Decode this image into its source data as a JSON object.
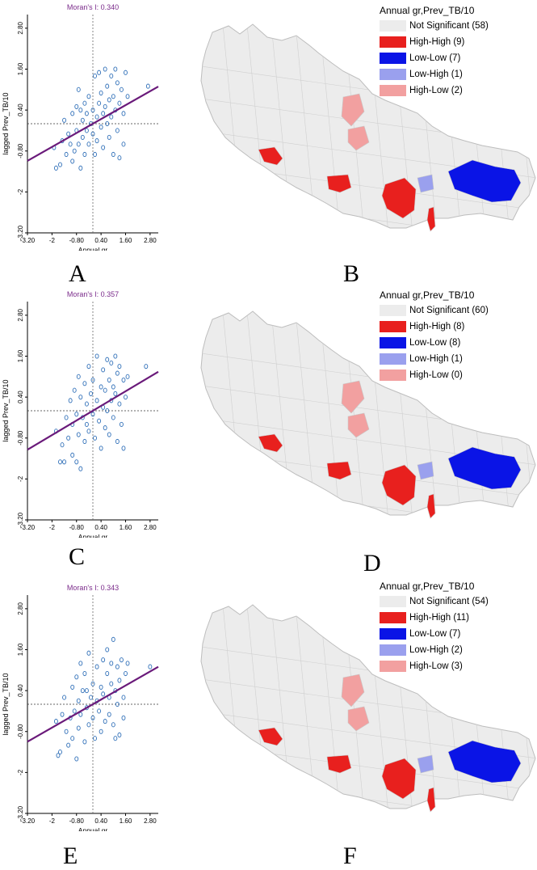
{
  "figure": {
    "panels": [
      {
        "label": "A",
        "kind": "scatter",
        "moran": "Moran's I: 0.340"
      },
      {
        "label": "B",
        "kind": "map",
        "legend_title": "Annual  gr,Prev_TB/10",
        "legend": [
          {
            "label": "Not Significant (58)",
            "color": "#ececec"
          },
          {
            "label": "High-High (9)",
            "color": "#e8201e"
          },
          {
            "label": "Low-Low (7)",
            "color": "#0a14e6"
          },
          {
            "label": "Low-High (1)",
            "color": "#9aa0ee"
          },
          {
            "label": "High-Low (2)",
            "color": "#f2a0a0"
          }
        ]
      },
      {
        "label": "C",
        "kind": "scatter",
        "moran": "Moran's I: 0.357"
      },
      {
        "label": "D",
        "kind": "map",
        "legend_title": "Annual  gr,Prev_TB/10",
        "legend": [
          {
            "label": "Not Significant (60)",
            "color": "#ececec"
          },
          {
            "label": "High-High (8)",
            "color": "#e8201e"
          },
          {
            "label": "Low-Low (8)",
            "color": "#0a14e6"
          },
          {
            "label": "Low-High (1)",
            "color": "#9aa0ee"
          },
          {
            "label": "High-Low (0)",
            "color": "#f2a0a0"
          }
        ]
      },
      {
        "label": "E",
        "kind": "scatter",
        "moran": "Moran's I: 0.343"
      },
      {
        "label": "F",
        "kind": "map",
        "legend_title": "Annual  gr,Prev_TB/10",
        "legend": [
          {
            "label": "Not Significant (54)",
            "color": "#ececec"
          },
          {
            "label": "High-High (11)",
            "color": "#e8201e"
          },
          {
            "label": "Low-Low (7)",
            "color": "#0a14e6"
          },
          {
            "label": "Low-High (2)",
            "color": "#9aa0ee"
          },
          {
            "label": "High-Low (3)",
            "color": "#f2a0a0"
          }
        ]
      }
    ]
  },
  "chart_data": [
    {
      "type": "scatter",
      "title": "Moran's I: 0.340",
      "xlabel": "Annual  gr",
      "ylabel": "lagged Prev_TB/10",
      "xticks": [
        "-3.20",
        "-2",
        "-0.80",
        "0.40",
        "1.60",
        "2.80"
      ],
      "yticks": [
        "-3.20",
        "-2",
        "-0.80",
        "0.40",
        "1.60",
        "2.80"
      ],
      "xlim": [
        -3.2,
        3.2
      ],
      "ylim": [
        -3.2,
        3.2
      ],
      "slope": 0.34,
      "points": [
        [
          -1.9,
          -0.7
        ],
        [
          -1.8,
          -1.3
        ],
        [
          -1.6,
          -1.2
        ],
        [
          -1.5,
          -0.5
        ],
        [
          -1.4,
          0.1
        ],
        [
          -1.3,
          -0.9
        ],
        [
          -1.2,
          -0.3
        ],
        [
          -1.1,
          -0.6
        ],
        [
          -1.0,
          0.3
        ],
        [
          -1.0,
          -1.1
        ],
        [
          -0.9,
          -0.8
        ],
        [
          -0.8,
          0.5
        ],
        [
          -0.8,
          -0.2
        ],
        [
          -0.7,
          1.0
        ],
        [
          -0.7,
          -0.6
        ],
        [
          -0.6,
          0.4
        ],
        [
          -0.6,
          -1.3
        ],
        [
          -0.5,
          0.1
        ],
        [
          -0.5,
          -0.4
        ],
        [
          -0.4,
          0.6
        ],
        [
          -0.4,
          -0.9
        ],
        [
          -0.3,
          0.3
        ],
        [
          -0.3,
          -0.2
        ],
        [
          -0.2,
          0.8
        ],
        [
          -0.2,
          -0.6
        ],
        [
          -0.1,
          0.0
        ],
        [
          0.0,
          0.4
        ],
        [
          0.0,
          -0.3
        ],
        [
          0.1,
          1.4
        ],
        [
          0.1,
          -0.9
        ],
        [
          0.2,
          0.2
        ],
        [
          0.2,
          -0.5
        ],
        [
          0.3,
          0.6
        ],
        [
          0.3,
          1.5
        ],
        [
          0.4,
          -0.1
        ],
        [
          0.4,
          0.9
        ],
        [
          0.5,
          0.3
        ],
        [
          0.5,
          -0.7
        ],
        [
          0.6,
          1.6
        ],
        [
          0.6,
          0.5
        ],
        [
          0.7,
          0.0
        ],
        [
          0.7,
          1.1
        ],
        [
          0.8,
          -0.4
        ],
        [
          0.8,
          0.7
        ],
        [
          0.9,
          1.4
        ],
        [
          0.9,
          0.2
        ],
        [
          1.0,
          -0.9
        ],
        [
          1.0,
          0.8
        ],
        [
          1.1,
          1.6
        ],
        [
          1.1,
          0.4
        ],
        [
          1.2,
          -0.2
        ],
        [
          1.2,
          1.2
        ],
        [
          1.3,
          0.6
        ],
        [
          1.3,
          -1.0
        ],
        [
          1.4,
          1.0
        ],
        [
          1.5,
          0.3
        ],
        [
          1.5,
          -0.6
        ],
        [
          1.6,
          1.5
        ],
        [
          1.7,
          0.8
        ],
        [
          2.7,
          1.1
        ]
      ]
    },
    {
      "type": "scatter",
      "title": "Moran's I: 0.357",
      "xlabel": "Annual  gr",
      "ylabel": "lagged Prev_TB/10",
      "xticks": [
        "-3.20",
        "-2",
        "-0.80",
        "0.40",
        "1.60",
        "2.80"
      ],
      "yticks": [
        "-3.20",
        "-2",
        "-0.80",
        "0.40",
        "1.60",
        "2.80"
      ],
      "xlim": [
        -3.2,
        3.2
      ],
      "ylim": [
        -3.2,
        3.2
      ],
      "slope": 0.357,
      "points": [
        [
          -1.8,
          -0.6
        ],
        [
          -1.6,
          -1.5
        ],
        [
          -1.5,
          -1.0
        ],
        [
          -1.4,
          -1.5
        ],
        [
          -1.3,
          -0.2
        ],
        [
          -1.2,
          -0.8
        ],
        [
          -1.1,
          0.3
        ],
        [
          -1.0,
          -0.4
        ],
        [
          -1.0,
          -1.3
        ],
        [
          -0.9,
          0.6
        ],
        [
          -0.8,
          -0.1
        ],
        [
          -0.8,
          -1.5
        ],
        [
          -0.7,
          1.0
        ],
        [
          -0.7,
          -0.7
        ],
        [
          -0.6,
          0.4
        ],
        [
          -0.6,
          -1.7
        ],
        [
          -0.5,
          -0.2
        ],
        [
          -0.4,
          0.8
        ],
        [
          -0.4,
          -0.9
        ],
        [
          -0.3,
          0.2
        ],
        [
          -0.3,
          -0.4
        ],
        [
          -0.2,
          1.3
        ],
        [
          -0.2,
          -0.6
        ],
        [
          -0.1,
          0.5
        ],
        [
          0.0,
          -0.1
        ],
        [
          0.0,
          0.9
        ],
        [
          0.1,
          -0.8
        ],
        [
          0.2,
          0.3
        ],
        [
          0.2,
          1.6
        ],
        [
          0.3,
          -0.3
        ],
        [
          0.4,
          0.7
        ],
        [
          0.4,
          -1.1
        ],
        [
          0.5,
          1.2
        ],
        [
          0.5,
          0.1
        ],
        [
          0.6,
          0.6
        ],
        [
          0.6,
          -0.5
        ],
        [
          0.7,
          1.5
        ],
        [
          0.7,
          0.0
        ],
        [
          0.8,
          0.9
        ],
        [
          0.8,
          -0.7
        ],
        [
          0.9,
          1.4
        ],
        [
          0.9,
          0.3
        ],
        [
          1.0,
          0.7
        ],
        [
          1.0,
          -0.2
        ],
        [
          1.1,
          1.6
        ],
        [
          1.1,
          0.5
        ],
        [
          1.2,
          -0.9
        ],
        [
          1.2,
          1.1
        ],
        [
          1.3,
          0.2
        ],
        [
          1.3,
          1.3
        ],
        [
          1.4,
          -0.4
        ],
        [
          1.5,
          0.9
        ],
        [
          1.5,
          -1.1
        ],
        [
          1.6,
          0.4
        ],
        [
          1.7,
          1.0
        ],
        [
          2.6,
          1.3
        ]
      ]
    },
    {
      "type": "scatter",
      "title": "Moran's I: 0.343",
      "xlabel": "Annual  gr",
      "ylabel": "lagged Prev_TB/10",
      "xticks": [
        "-3.20",
        "-2",
        "-0.80",
        "0.40",
        "1.60",
        "2.80"
      ],
      "yticks": [
        "-3.20",
        "-2",
        "-0.80",
        "0.40",
        "1.60",
        "2.80"
      ],
      "xlim": [
        -3.2,
        3.2
      ],
      "ylim": [
        -3.2,
        3.2
      ],
      "slope": 0.343,
      "points": [
        [
          -1.8,
          -0.5
        ],
        [
          -1.7,
          -1.5
        ],
        [
          -1.6,
          -1.4
        ],
        [
          -1.5,
          -0.3
        ],
        [
          -1.4,
          0.2
        ],
        [
          -1.3,
          -0.8
        ],
        [
          -1.2,
          -1.2
        ],
        [
          -1.1,
          -0.4
        ],
        [
          -1.0,
          0.5
        ],
        [
          -1.0,
          -1.0
        ],
        [
          -0.9,
          -0.2
        ],
        [
          -0.8,
          0.8
        ],
        [
          -0.8,
          -1.6
        ],
        [
          -0.7,
          0.1
        ],
        [
          -0.7,
          -0.7
        ],
        [
          -0.6,
          1.2
        ],
        [
          -0.6,
          -0.3
        ],
        [
          -0.5,
          0.4
        ],
        [
          -0.4,
          -1.1
        ],
        [
          -0.4,
          0.9
        ],
        [
          -0.3,
          -0.1
        ],
        [
          -0.3,
          0.4
        ],
        [
          -0.2,
          -0.6
        ],
        [
          -0.2,
          1.5
        ],
        [
          -0.1,
          0.2
        ],
        [
          0.0,
          -0.4
        ],
        [
          0.0,
          0.6
        ],
        [
          0.1,
          -1.0
        ],
        [
          0.2,
          0.1
        ],
        [
          0.2,
          1.1
        ],
        [
          0.3,
          -0.2
        ],
        [
          0.4,
          0.5
        ],
        [
          0.4,
          -0.8
        ],
        [
          0.5,
          1.3
        ],
        [
          0.5,
          0.3
        ],
        [
          0.6,
          -0.5
        ],
        [
          0.7,
          0.9
        ],
        [
          0.7,
          1.6
        ],
        [
          0.8,
          0.2
        ],
        [
          0.8,
          -0.3
        ],
        [
          0.9,
          1.2
        ],
        [
          0.9,
          0.6
        ],
        [
          1.0,
          -0.6
        ],
        [
          1.0,
          1.9
        ],
        [
          1.1,
          0.4
        ],
        [
          1.1,
          -1.0
        ],
        [
          1.2,
          1.1
        ],
        [
          1.2,
          0.0
        ],
        [
          1.3,
          0.7
        ],
        [
          1.3,
          -0.9
        ],
        [
          1.4,
          1.3
        ],
        [
          1.5,
          0.2
        ],
        [
          1.5,
          -0.4
        ],
        [
          1.6,
          0.9
        ],
        [
          1.7,
          1.2
        ],
        [
          2.8,
          1.1
        ]
      ]
    }
  ]
}
